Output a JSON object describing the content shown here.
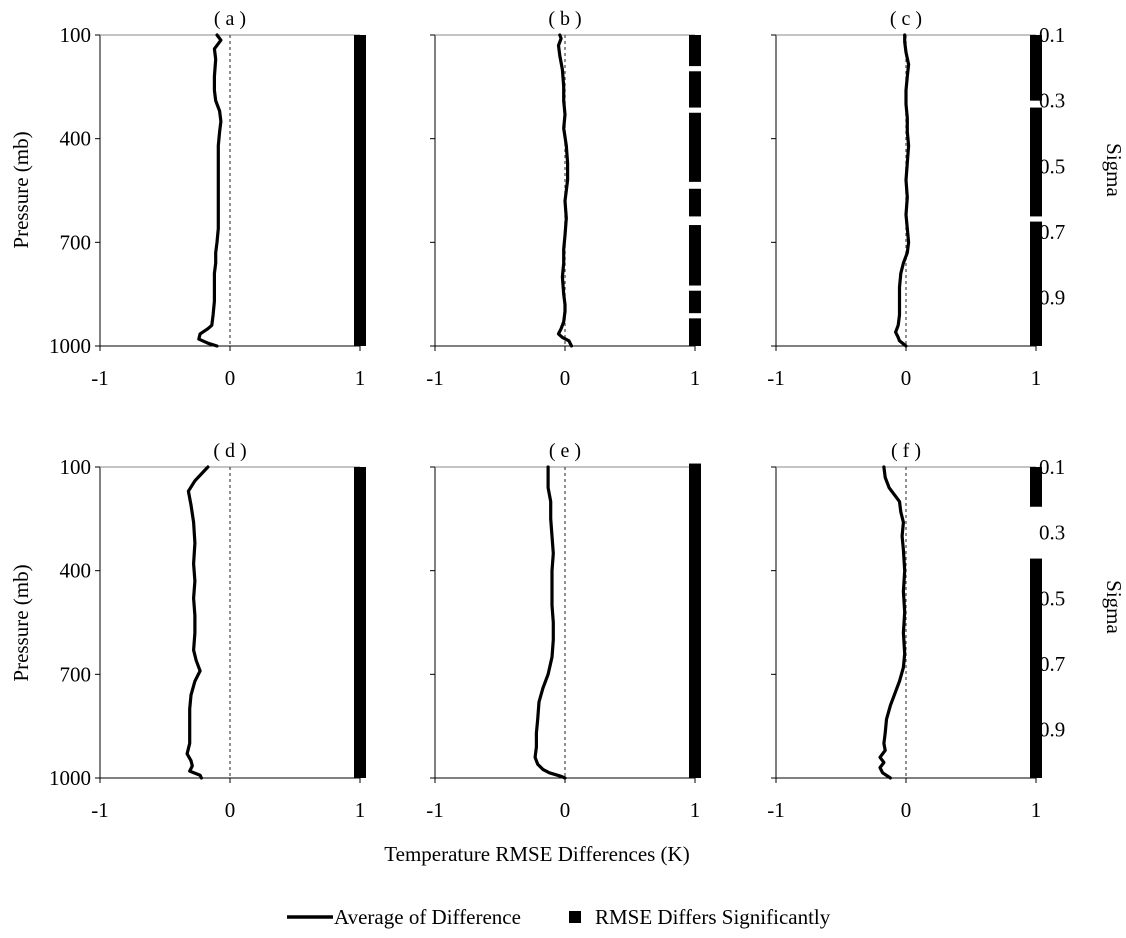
{
  "figure": {
    "xlabel": "Temperature RMSE Differences (K)",
    "ylabel": "Pressure (mb)",
    "ylabel_right": "Sigma",
    "legend": {
      "line_label": "Average of Difference",
      "marker_label": "RMSE Differs Significantly"
    }
  },
  "chart_data": {
    "type": "line",
    "x_axis": {
      "range": [
        -1,
        1
      ],
      "ticks": [
        "-1",
        "0",
        "1"
      ]
    },
    "y_axis": {
      "range": [
        100,
        1000
      ],
      "inverted": true,
      "ticks": [
        "100",
        "400",
        "700",
        "1000"
      ]
    },
    "y_axis_right": {
      "label": "Sigma",
      "ticks": [
        {
          "label": "0.1",
          "pressure": 100
        },
        {
          "label": "0.3",
          "pressure": 290
        },
        {
          "label": "0.5",
          "pressure": 480
        },
        {
          "label": "0.7",
          "pressure": 670
        },
        {
          "label": "0.9",
          "pressure": 860
        }
      ]
    },
    "panels": [
      {
        "title": "( a )",
        "series": [
          {
            "name": "Average of Difference",
            "points": [
              [
                -0.1,
                100
              ],
              [
                -0.07,
                115
              ],
              [
                -0.12,
                140
              ],
              [
                -0.11,
                170
              ],
              [
                -0.12,
                220
              ],
              [
                -0.12,
                260
              ],
              [
                -0.11,
                290
              ],
              [
                -0.08,
                320
              ],
              [
                -0.07,
                350
              ],
              [
                -0.08,
                380
              ],
              [
                -0.09,
                420
              ],
              [
                -0.09,
                470
              ],
              [
                -0.09,
                520
              ],
              [
                -0.09,
                570
              ],
              [
                -0.09,
                620
              ],
              [
                -0.09,
                660
              ],
              [
                -0.1,
                700
              ],
              [
                -0.11,
                730
              ],
              [
                -0.11,
                760
              ],
              [
                -0.12,
                790
              ],
              [
                -0.12,
                830
              ],
              [
                -0.12,
                870
              ],
              [
                -0.13,
                910
              ],
              [
                -0.14,
                940
              ],
              [
                -0.17,
                950
              ],
              [
                -0.23,
                965
              ],
              [
                -0.24,
                980
              ],
              [
                -0.17,
                992
              ],
              [
                -0.1,
                1000
              ]
            ]
          }
        ],
        "significant_segments": [
          [
            100,
            1000
          ]
        ]
      },
      {
        "title": "( b )",
        "series": [
          {
            "name": "Average of Difference",
            "points": [
              [
                -0.04,
                100
              ],
              [
                -0.03,
                110
              ],
              [
                -0.05,
                130
              ],
              [
                -0.04,
                160
              ],
              [
                -0.02,
                200
              ],
              [
                -0.01,
                250
              ],
              [
                -0.01,
                290
              ],
              [
                0.0,
                330
              ],
              [
                -0.01,
                370
              ],
              [
                0.01,
                420
              ],
              [
                0.02,
                470
              ],
              [
                0.02,
                520
              ],
              [
                0.0,
                580
              ],
              [
                0.01,
                630
              ],
              [
                0.0,
                680
              ],
              [
                -0.01,
                720
              ],
              [
                -0.01,
                760
              ],
              [
                -0.02,
                800
              ],
              [
                -0.01,
                850
              ],
              [
                0.0,
                880
              ],
              [
                0.0,
                900
              ],
              [
                -0.01,
                930
              ],
              [
                -0.03,
                950
              ],
              [
                -0.05,
                965
              ],
              [
                -0.02,
                975
              ],
              [
                0.03,
                985
              ],
              [
                0.05,
                1000
              ]
            ]
          }
        ],
        "significant_segments": [
          [
            100,
            190
          ],
          [
            205,
            310
          ],
          [
            325,
            525
          ],
          [
            545,
            625
          ],
          [
            650,
            825
          ],
          [
            840,
            905
          ],
          [
            920,
            1000
          ]
        ]
      },
      {
        "title": "( c )",
        "series": [
          {
            "name": "Average of Difference",
            "points": [
              [
                -0.01,
                100
              ],
              [
                -0.01,
                120
              ],
              [
                0.0,
                150
              ],
              [
                0.02,
                185
              ],
              [
                0.01,
                220
              ],
              [
                0.0,
                260
              ],
              [
                0.0,
                300
              ],
              [
                0.01,
                340
              ],
              [
                0.01,
                380
              ],
              [
                0.02,
                420
              ],
              [
                0.01,
                470
              ],
              [
                0.0,
                520
              ],
              [
                0.01,
                570
              ],
              [
                0.0,
                620
              ],
              [
                0.01,
                660
              ],
              [
                0.02,
                700
              ],
              [
                0.01,
                730
              ],
              [
                -0.02,
                760
              ],
              [
                -0.04,
                790
              ],
              [
                -0.05,
                830
              ],
              [
                -0.05,
                870
              ],
              [
                -0.05,
                910
              ],
              [
                -0.06,
                940
              ],
              [
                -0.08,
                960
              ],
              [
                -0.06,
                975
              ],
              [
                -0.05,
                985
              ],
              [
                0.0,
                1000
              ]
            ]
          }
        ],
        "significant_segments": [
          [
            100,
            290
          ],
          [
            310,
            625
          ],
          [
            640,
            1000
          ]
        ]
      },
      {
        "title": "( d )",
        "series": [
          {
            "name": "Average of Difference",
            "points": [
              [
                -0.17,
                100
              ],
              [
                -0.22,
                120
              ],
              [
                -0.27,
                140
              ],
              [
                -0.32,
                170
              ],
              [
                -0.3,
                210
              ],
              [
                -0.28,
                260
              ],
              [
                -0.27,
                320
              ],
              [
                -0.28,
                380
              ],
              [
                -0.27,
                430
              ],
              [
                -0.28,
                480
              ],
              [
                -0.27,
                530
              ],
              [
                -0.27,
                580
              ],
              [
                -0.28,
                630
              ],
              [
                -0.26,
                660
              ],
              [
                -0.23,
                690
              ],
              [
                -0.27,
                720
              ],
              [
                -0.3,
                760
              ],
              [
                -0.31,
                800
              ],
              [
                -0.31,
                850
              ],
              [
                -0.31,
                900
              ],
              [
                -0.33,
                930
              ],
              [
                -0.3,
                950
              ],
              [
                -0.29,
                965
              ],
              [
                -0.31,
                980
              ],
              [
                -0.23,
                992
              ],
              [
                -0.22,
                1000
              ]
            ]
          }
        ],
        "significant_segments": [
          [
            100,
            1000
          ]
        ]
      },
      {
        "title": "( e )",
        "series": [
          {
            "name": "Average of Difference",
            "points": [
              [
                -0.13,
                100
              ],
              [
                -0.13,
                130
              ],
              [
                -0.13,
                160
              ],
              [
                -0.11,
                200
              ],
              [
                -0.11,
                250
              ],
              [
                -0.1,
                300
              ],
              [
                -0.09,
                350
              ],
              [
                -0.1,
                400
              ],
              [
                -0.1,
                450
              ],
              [
                -0.1,
                500
              ],
              [
                -0.09,
                550
              ],
              [
                -0.09,
                600
              ],
              [
                -0.1,
                650
              ],
              [
                -0.13,
                700
              ],
              [
                -0.17,
                740
              ],
              [
                -0.2,
                780
              ],
              [
                -0.21,
                830
              ],
              [
                -0.22,
                870
              ],
              [
                -0.22,
                910
              ],
              [
                -0.23,
                940
              ],
              [
                -0.21,
                960
              ],
              [
                -0.17,
                975
              ],
              [
                -0.12,
                985
              ],
              [
                -0.03,
                995
              ],
              [
                0.0,
                1000
              ]
            ]
          }
        ],
        "significant_segments": [
          [
            90,
            1000
          ]
        ]
      },
      {
        "title": "( f )",
        "series": [
          {
            "name": "Average of Difference",
            "points": [
              [
                -0.17,
                100
              ],
              [
                -0.16,
                130
              ],
              [
                -0.13,
                160
              ],
              [
                -0.05,
                200
              ],
              [
                -0.04,
                230
              ],
              [
                -0.02,
                260
              ],
              [
                -0.03,
                300
              ],
              [
                -0.02,
                340
              ],
              [
                -0.01,
                400
              ],
              [
                -0.02,
                460
              ],
              [
                -0.01,
                520
              ],
              [
                -0.02,
                580
              ],
              [
                -0.01,
                640
              ],
              [
                -0.02,
                680
              ],
              [
                -0.05,
                720
              ],
              [
                -0.09,
                760
              ],
              [
                -0.12,
                790
              ],
              [
                -0.15,
                830
              ],
              [
                -0.16,
                870
              ],
              [
                -0.17,
                900
              ],
              [
                -0.16,
                920
              ],
              [
                -0.2,
                940
              ],
              [
                -0.17,
                955
              ],
              [
                -0.2,
                970
              ],
              [
                -0.18,
                985
              ],
              [
                -0.12,
                1000
              ]
            ]
          }
        ],
        "significant_segments": [
          [
            100,
            215
          ],
          [
            365,
            1000
          ]
        ]
      }
    ]
  }
}
